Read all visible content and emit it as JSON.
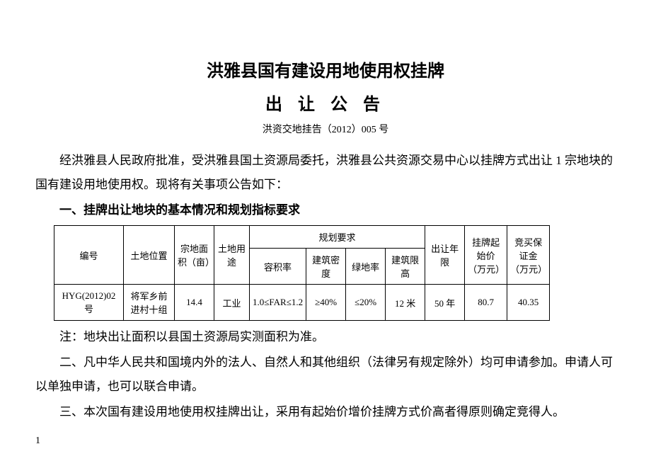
{
  "header": {
    "title_main": "洪雅县国有建设用地使用权挂牌",
    "title_sub": "出 让 公 告",
    "doc_number": "洪资交地挂告（2012）005 号"
  },
  "intro_para": "经洪雅县人民政府批准，受洪雅县国土资源局委托，洪雅县公共资源交易中心以挂牌方式出让 1 宗地块的国有建设用地使用权。现将有关事项公告如下：",
  "section1": {
    "heading": "一、挂牌出让地块的基本情况和规划指标要求",
    "table": {
      "headers": {
        "id": "编号",
        "location": "土地位置",
        "area": "宗地面积（亩）",
        "use": "土地用途",
        "planning_group": "规划要求",
        "far": "容积率",
        "density": "建筑密度",
        "green": "绿地率",
        "height_limit": "建筑限高",
        "term": "出让年限",
        "start_price": "挂牌起始价（万元）",
        "deposit": "竞买保证金（万元）"
      },
      "row": {
        "id": "HYG(2012)02 号",
        "location": "将军乡前进村十组",
        "area": "14.4",
        "use": "工业",
        "far": "1.0≤FAR≤1.2",
        "density": "≥40%",
        "green": "≤20%",
        "height_limit": "12 米",
        "term": "50 年",
        "start_price": "80.7",
        "deposit": "40.35"
      }
    },
    "note": "注：地块出让面积以县国土资源局实测面积为准。"
  },
  "section2": "二、凡中华人民共和国境内外的法人、自然人和其他组织（法律另有规定除外）均可申请参加。申请人可以单独申请，也可以联合申请。",
  "section3": "三、本次国有建设用地使用权挂牌出让，采用有起始价增价挂牌方式价高者得原则确定竞得人。",
  "page_number": "1"
}
